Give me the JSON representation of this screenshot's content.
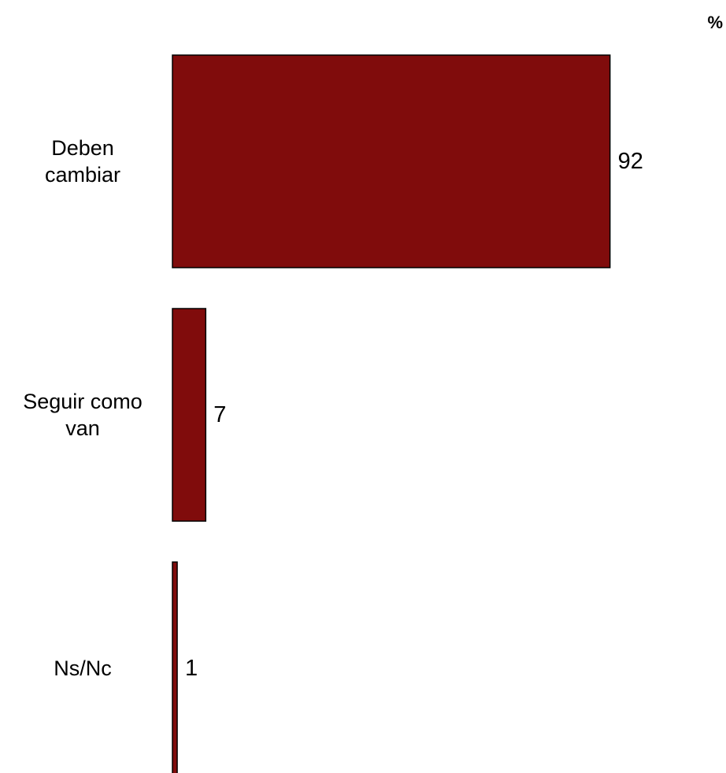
{
  "chart_data": {
    "type": "bar",
    "orientation": "horizontal",
    "unit": "%",
    "categories": [
      [
        "Deben",
        "cambiar"
      ],
      [
        "Seguir como",
        "van"
      ],
      [
        "Ns/Nc"
      ]
    ],
    "values": [
      92,
      7,
      1
    ],
    "data_labels": [
      "92",
      "7",
      "1"
    ],
    "xlim": [
      0,
      100
    ],
    "title": "",
    "xlabel": "",
    "ylabel": "",
    "grid": false,
    "legend": "none",
    "bar_color": "#800c0c",
    "bar_stroke": "#000000"
  }
}
